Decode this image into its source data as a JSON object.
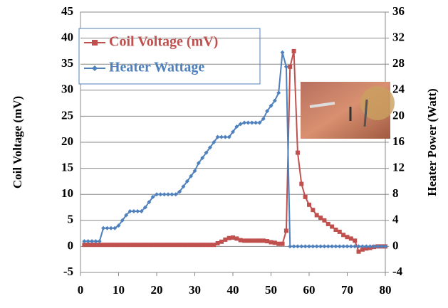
{
  "chart_data": {
    "type": "line",
    "x": [
      1,
      2,
      3,
      4,
      5,
      6,
      7,
      8,
      9,
      10,
      11,
      12,
      13,
      14,
      15,
      16,
      17,
      18,
      19,
      20,
      21,
      22,
      23,
      24,
      25,
      26,
      27,
      28,
      29,
      30,
      31,
      32,
      33,
      34,
      35,
      36,
      37,
      38,
      39,
      40,
      41,
      42,
      43,
      44,
      45,
      46,
      47,
      48,
      49,
      50,
      51,
      52,
      53,
      54,
      55,
      56,
      57,
      58,
      59,
      60,
      61,
      62,
      63,
      64,
      65,
      66,
      67,
      68,
      69,
      70,
      71,
      72,
      73,
      74,
      75,
      76,
      77,
      78,
      79,
      80
    ],
    "series": [
      {
        "name": "Coil Voltage (mV)",
        "color": "#c0504d",
        "marker": "square",
        "axis": "y",
        "values": [
          0.3,
          0.3,
          0.3,
          0.3,
          0.3,
          0.3,
          0.3,
          0.3,
          0.3,
          0.3,
          0.3,
          0.3,
          0.3,
          0.3,
          0.3,
          0.3,
          0.3,
          0.3,
          0.3,
          0.3,
          0.3,
          0.3,
          0.3,
          0.3,
          0.3,
          0.3,
          0.3,
          0.3,
          0.3,
          0.3,
          0.3,
          0.3,
          0.3,
          0.3,
          0.3,
          0.6,
          0.9,
          1.3,
          1.6,
          1.7,
          1.5,
          1.2,
          1.1,
          1.1,
          1.1,
          1.1,
          1.1,
          1.1,
          1.0,
          0.8,
          0.7,
          0.5,
          0.5,
          3,
          34.5,
          37.5,
          18,
          12,
          9.5,
          8,
          7,
          6,
          5.5,
          5,
          4.3,
          3.8,
          3.2,
          2.8,
          2.2,
          1.8,
          1.5,
          1.1,
          -1,
          -0.6,
          -0.4,
          -0.3,
          -0.1,
          0,
          0,
          0
        ]
      },
      {
        "name": "Heater Wattage",
        "color": "#4f81bd",
        "marker": "diamond",
        "axis": "y2",
        "values": [
          0.8,
          0.8,
          0.8,
          0.8,
          0.8,
          2.8,
          2.8,
          2.8,
          2.8,
          3.2,
          4,
          4.8,
          5.4,
          5.4,
          5.4,
          5.4,
          6,
          6.8,
          7.6,
          8,
          8,
          8,
          8,
          8,
          8,
          8.4,
          9.2,
          10,
          10.8,
          11.6,
          12.8,
          13.6,
          14.4,
          15.2,
          16,
          16.8,
          16.8,
          16.8,
          16.8,
          17.6,
          18.4,
          18.8,
          19,
          19,
          19,
          19,
          19,
          19.6,
          20.8,
          21.6,
          22.4,
          23.6,
          29.8,
          27.6,
          0,
          0,
          0,
          0,
          0,
          0,
          0,
          0,
          0,
          0,
          0,
          0,
          0,
          0,
          0,
          0,
          0,
          0,
          0,
          0,
          0,
          0,
          0,
          0,
          0,
          0
        ]
      }
    ],
    "ylabel": "Coil Voltage (mV)",
    "y2label": "Heater Power (Watt)",
    "xlim": [
      0,
      80
    ],
    "xticks": [
      0,
      10,
      20,
      30,
      40,
      50,
      60,
      70,
      80
    ],
    "ylim": [
      -5,
      45
    ],
    "yticks": [
      -5,
      0,
      5,
      10,
      15,
      20,
      25,
      30,
      35,
      40,
      45
    ],
    "y2lim": [
      -4,
      36
    ],
    "y2ticks": [
      -4,
      0,
      4,
      8,
      12,
      16,
      20,
      24,
      28,
      32,
      36
    ],
    "grid": true
  }
}
